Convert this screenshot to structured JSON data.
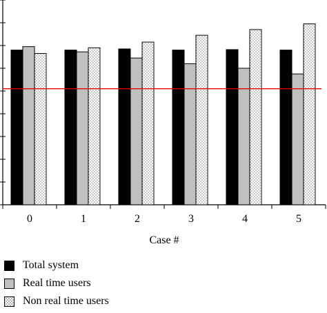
{
  "chart_data": {
    "type": "bar",
    "title": "",
    "xlabel": "Case #",
    "ylabel": "",
    "categories": [
      "0",
      "1",
      "2",
      "3",
      "4",
      "5"
    ],
    "ylim": [
      0,
      9
    ],
    "grid": false,
    "legend_position": "bottom-left",
    "series": [
      {
        "name": "Total system",
        "values": [
          6.8,
          6.8,
          6.85,
          6.8,
          6.82,
          6.8
        ],
        "fill": "#000000",
        "pattern": "solid"
      },
      {
        "name": "Real time users",
        "values": [
          6.95,
          6.72,
          6.45,
          6.2,
          6.0,
          5.75
        ],
        "fill": "#c0c0c0",
        "pattern": "solid"
      },
      {
        "name": "Non real time users",
        "values": [
          6.65,
          6.9,
          7.15,
          7.45,
          7.7,
          7.95
        ],
        "fill": "#ffffff",
        "pattern": "dots"
      }
    ],
    "reference_line": {
      "value": 5.1,
      "color": "#e00000"
    }
  }
}
